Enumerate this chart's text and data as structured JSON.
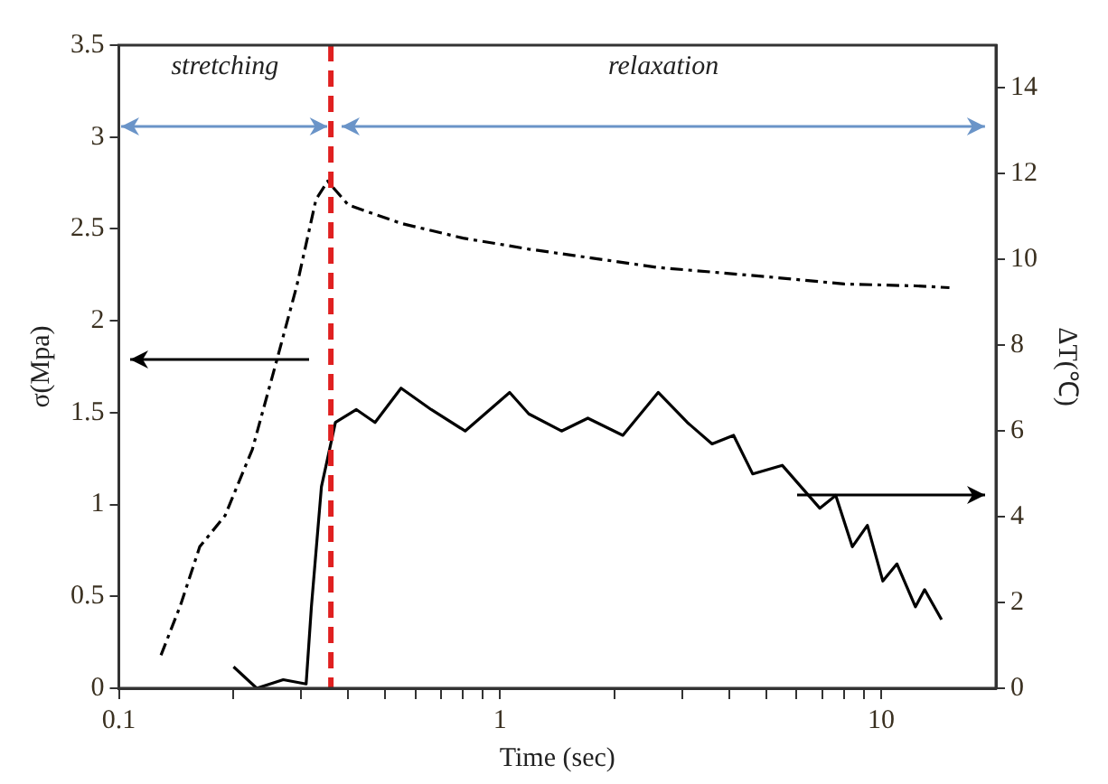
{
  "chart_data": {
    "type": "line",
    "xlabel": "Time (sec)",
    "ylabel": "σ(Mpa)",
    "y2label": "ΔT(℃)",
    "log": "x",
    "grid": false,
    "legend": false,
    "marker": "none",
    "xlim": [
      0.1,
      20
    ],
    "xticks": [
      0.1,
      {
        "value": 0.2,
        "label": null
      },
      {
        "value": 0.3,
        "label": null
      },
      {
        "value": 0.4,
        "label": null
      },
      {
        "value": 0.5,
        "label": null
      },
      {
        "value": 0.6,
        "label": null
      },
      {
        "value": 0.7,
        "label": null
      },
      {
        "value": 0.8,
        "label": null
      },
      {
        "value": 0.9,
        "label": null
      },
      1,
      {
        "value": 2,
        "label": null
      },
      {
        "value": 3,
        "label": null
      },
      {
        "value": 4,
        "label": null
      },
      {
        "value": 5,
        "label": null
      },
      {
        "value": 6,
        "label": null
      },
      {
        "value": 7,
        "label": null
      },
      {
        "value": 8,
        "label": null
      },
      {
        "value": 9,
        "label": null
      },
      10
    ],
    "ylim": [
      0,
      3.5
    ],
    "yticks": [
      0,
      0.5,
      1,
      1.5,
      2,
      2.5,
      3,
      3.5
    ],
    "y2lim": [
      0,
      15
    ],
    "y2ticks": [
      0,
      2,
      4,
      6,
      8,
      10,
      12,
      14
    ],
    "ref_lines": [
      {
        "axis": "x",
        "value": 0.36,
        "color": "#e02020",
        "line_style": "dashed"
      }
    ],
    "annotations": [
      "stretching",
      "relaxation"
    ],
    "series": [
      {
        "color": "#000000",
        "line_style": "dashed",
        "x": [
          0.129,
          0.145,
          0.163,
          0.19,
          0.224,
          0.26,
          0.293,
          0.329,
          0.353,
          0.4,
          0.55,
          0.8,
          1.19,
          2.6,
          5,
          8,
          12.3,
          15.1
        ],
        "values": [
          0.18,
          0.45,
          0.77,
          0.94,
          1.3,
          1.79,
          2.19,
          2.66,
          2.76,
          2.63,
          2.53,
          2.45,
          2.39,
          2.29,
          2.24,
          2.2,
          2.19,
          2.18
        ]
      },
      {
        "color": "#000000",
        "axis": "y2",
        "line_style": "solid",
        "x": [
          0.2,
          0.23,
          0.27,
          0.31,
          0.32,
          0.34,
          0.37,
          0.42,
          0.47,
          0.55,
          0.66,
          0.81,
          1.06,
          1.19,
          1.45,
          1.7,
          2.1,
          2.6,
          3.1,
          3.6,
          4.1,
          4.6,
          5.5,
          6.9,
          7.6,
          8.4,
          9.2,
          10.1,
          11,
          12.3,
          13,
          14.4
        ],
        "values": [
          0.5,
          0,
          0.2,
          0.1,
          1.9,
          4.7,
          6.2,
          6.5,
          6.2,
          7.0,
          6.5,
          6.0,
          6.9,
          6.4,
          6.0,
          6.3,
          5.9,
          6.9,
          6.2,
          5.7,
          5.9,
          5.0,
          5.2,
          4.2,
          4.5,
          3.3,
          3.8,
          2.5,
          2.9,
          1.9,
          2.3,
          1.6
        ]
      }
    ]
  }
}
